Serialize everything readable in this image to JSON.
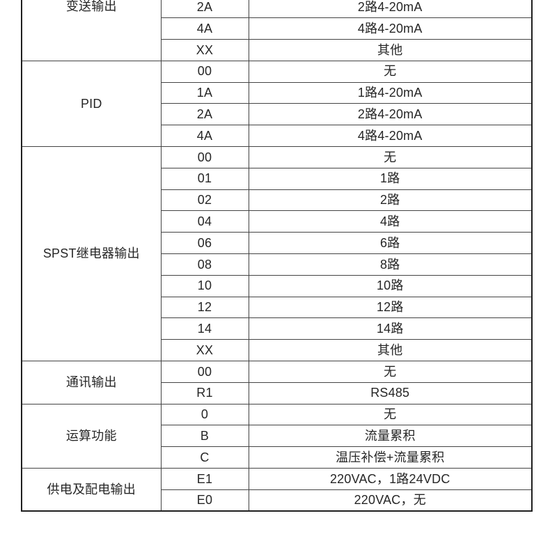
{
  "page": {
    "background_color": "#ffffff",
    "text_color": "#262626",
    "border_outer_color": "#1f1f1f",
    "border_inner_color": "#434343"
  },
  "table": {
    "kind": "product-ordering-spec-table",
    "columns": [
      "category",
      "code",
      "description"
    ],
    "sections": [
      {
        "category": "变送输出",
        "category_align": "top",
        "rows": [
          {
            "code": "2A",
            "description": "2路4-20mA"
          },
          {
            "code": "4A",
            "description": "4路4-20mA"
          },
          {
            "code": "XX",
            "description": "其他"
          }
        ]
      },
      {
        "category": "PID",
        "rows": [
          {
            "code": "00",
            "description": "无"
          },
          {
            "code": "1A",
            "description": "1路4-20mA"
          },
          {
            "code": "2A",
            "description": "2路4-20mA"
          },
          {
            "code": "4A",
            "description": "4路4-20mA"
          }
        ]
      },
      {
        "category": "SPST继电器输出",
        "rows": [
          {
            "code": "00",
            "description": "无"
          },
          {
            "code": "01",
            "description": "1路"
          },
          {
            "code": "02",
            "description": "2路"
          },
          {
            "code": "04",
            "description": "4路"
          },
          {
            "code": "06",
            "description": "6路"
          },
          {
            "code": "08",
            "description": "8路"
          },
          {
            "code": "10",
            "description": "10路"
          },
          {
            "code": "12",
            "description": "12路"
          },
          {
            "code": "14",
            "description": "14路"
          },
          {
            "code": "XX",
            "description": "其他"
          }
        ]
      },
      {
        "category": "通讯输出",
        "rows": [
          {
            "code": "00",
            "description": "无"
          },
          {
            "code": "R1",
            "description": "RS485"
          }
        ]
      },
      {
        "category": "运算功能",
        "rows": [
          {
            "code": "0",
            "description": "无"
          },
          {
            "code": "B",
            "description": "流量累积"
          },
          {
            "code": "C",
            "description": "温压补偿+流量累积"
          }
        ]
      },
      {
        "category": "供电及配电输出",
        "rows": [
          {
            "code": "E1",
            "description": "220VAC，1路24VDC"
          },
          {
            "code": "E0",
            "description": "220VAC，无"
          }
        ]
      }
    ]
  }
}
